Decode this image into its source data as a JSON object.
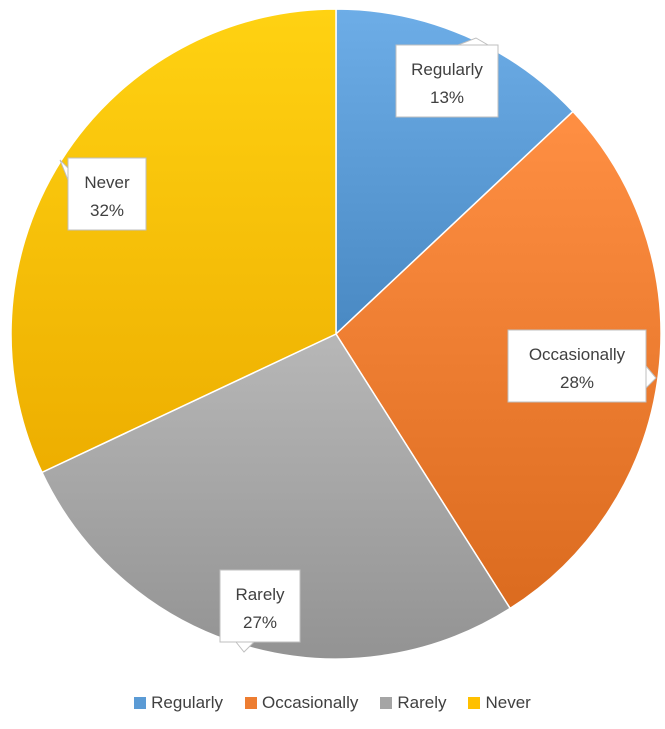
{
  "chart_data": {
    "type": "pie",
    "title": "",
    "categories": [
      "Regularly",
      "Occasionally",
      "Rarely",
      "Never"
    ],
    "values": [
      13,
      28,
      27,
      32
    ],
    "value_labels": [
      "13%",
      "28%",
      "27%",
      "32%"
    ],
    "colors": [
      "#5B9BD5",
      "#ED7D31",
      "#A5A5A5",
      "#FFC000"
    ],
    "legend_position": "bottom",
    "data_labels": "callout"
  },
  "legend": {
    "items": [
      {
        "label": "Regularly",
        "color": "#5B9BD5"
      },
      {
        "label": "Occasionally",
        "color": "#ED7D31"
      },
      {
        "label": "Rarely",
        "color": "#A5A5A5"
      },
      {
        "label": "Never",
        "color": "#FFC000"
      }
    ]
  }
}
